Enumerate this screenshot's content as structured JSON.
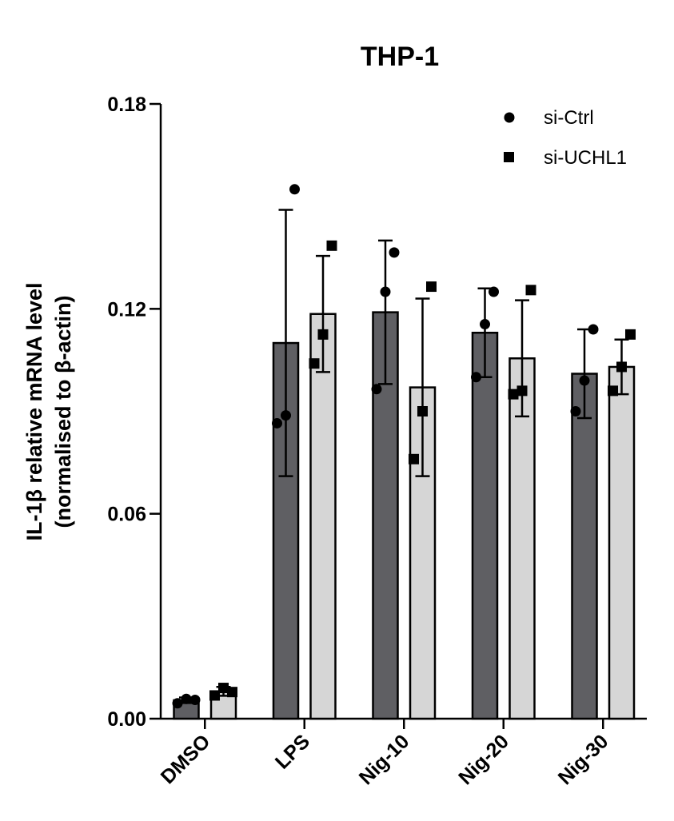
{
  "chart_data": {
    "type": "bar",
    "title": "THP-1",
    "ylabel_line1": "IL-1β relative mRNA level",
    "ylabel_line2": "(normalised to β-actin)",
    "xlabel": "",
    "ylim": [
      0,
      0.18
    ],
    "yticks": [
      "0.00",
      "0.06",
      "0.12",
      "0.18"
    ],
    "ytick_values": [
      0,
      0.06,
      0.12,
      0.18
    ],
    "categories": [
      "DMSO",
      "LPS",
      "Nig-10",
      "Nig-20",
      "Nig-30"
    ],
    "legend_position": "top-right",
    "grid": false,
    "series": [
      {
        "name": "si-Ctrl",
        "marker": "circle",
        "color": "#5f5f63",
        "values": [
          0.0054,
          0.11,
          0.119,
          0.113,
          0.101
        ],
        "error": [
          0.0008,
          0.039,
          0.021,
          0.013,
          0.013
        ],
        "points": [
          [
            0.0045,
            0.0058,
            0.0055
          ],
          [
            0.0865,
            0.0888,
            0.155
          ],
          [
            0.0965,
            0.125,
            0.1365
          ],
          [
            0.1,
            0.1155,
            0.125
          ],
          [
            0.09,
            0.099,
            0.114
          ]
        ]
      },
      {
        "name": "si-UCHL1",
        "marker": "square",
        "color": "#d6d6d6",
        "values": [
          0.008,
          0.1185,
          0.097,
          0.1055,
          0.103
        ],
        "error": [
          0.0013,
          0.017,
          0.026,
          0.017,
          0.008
        ],
        "points": [
          [
            0.0068,
            0.009,
            0.0078
          ],
          [
            0.104,
            0.1125,
            0.1385
          ],
          [
            0.076,
            0.09,
            0.1265
          ],
          [
            0.095,
            0.096,
            0.1255
          ],
          [
            0.096,
            0.103,
            0.1125
          ]
        ]
      }
    ]
  }
}
